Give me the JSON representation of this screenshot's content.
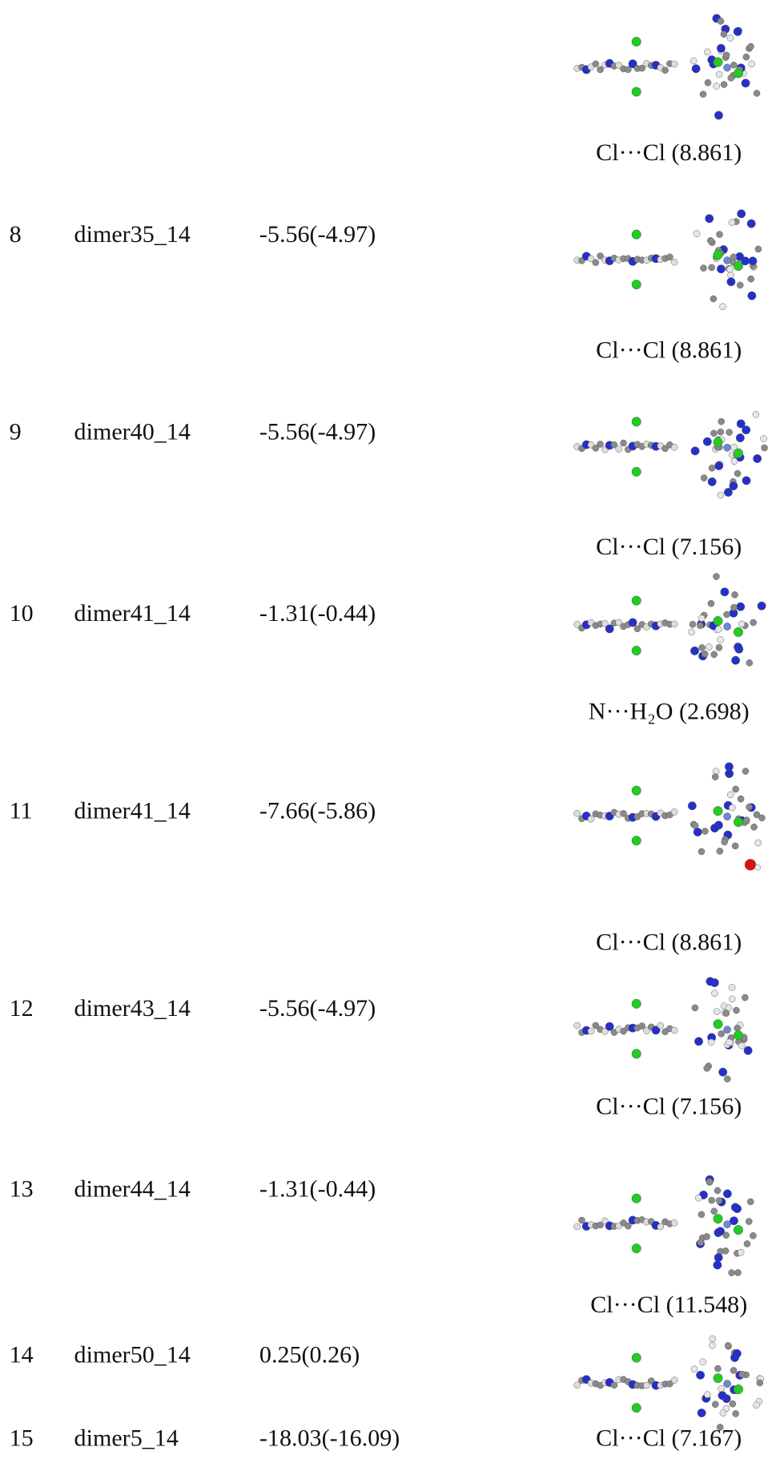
{
  "table": {
    "rows": [
      {
        "index": "8",
        "name": "dimer35_14",
        "energy": "-5.56(-4.97)"
      },
      {
        "index": "9",
        "name": "dimer40_14",
        "energy": "-5.56(-4.97)"
      },
      {
        "index": "10",
        "name": "dimer41_14",
        "energy": "-1.31(-0.44)"
      },
      {
        "index": "11",
        "name": "dimer41_14",
        "energy": "-7.66(-5.86)"
      },
      {
        "index": "12",
        "name": "dimer43_14",
        "energy": "-5.56(-4.97)"
      },
      {
        "index": "13",
        "name": "dimer44_14",
        "energy": "-1.31(-0.44)"
      },
      {
        "index": "14",
        "name": "dimer50_14",
        "energy": "0.25(0.26)"
      },
      {
        "index": "15",
        "name": "dimer5_14",
        "energy": "-18.03(-16.09)"
      }
    ],
    "captions": [
      "Cl···Cl (8.861)",
      "Cl···Cl (8.861)",
      "Cl···Cl (7.156)",
      "N···H₂O (2.698)",
      "Cl···Cl (8.861)",
      "Cl···Cl (7.156)",
      "Cl···Cl (11.548)",
      "Cl···Cl (7.167)"
    ]
  }
}
